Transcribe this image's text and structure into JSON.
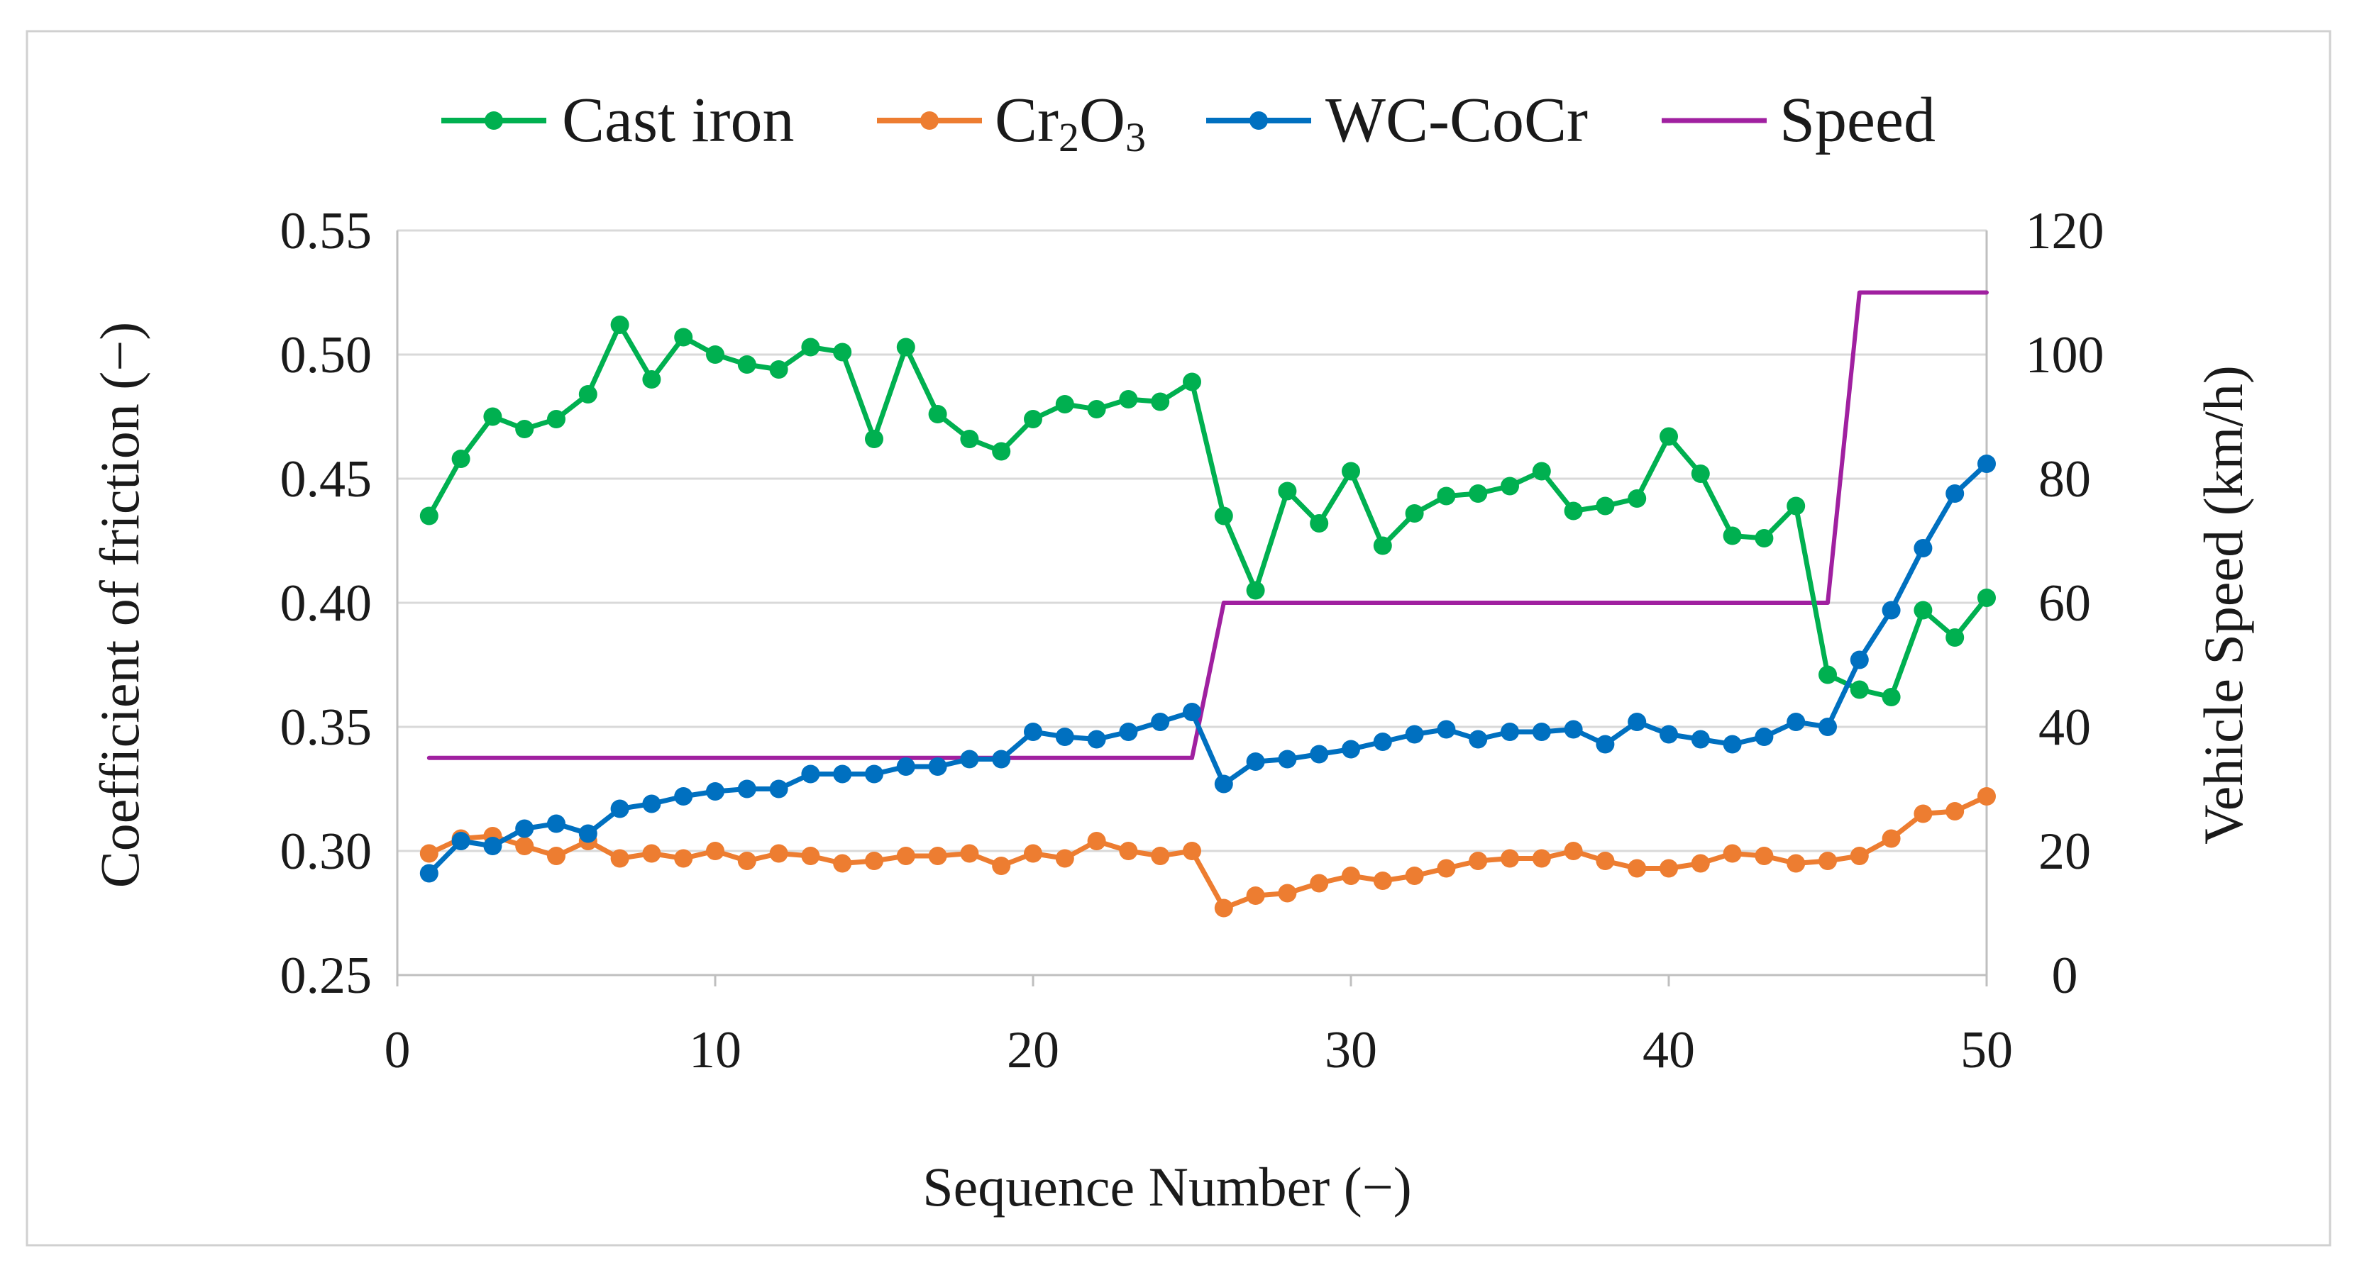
{
  "chart_data": {
    "type": "line",
    "xlabel": "Sequence Number (−)",
    "ylabel": "Coefficient of friction (−)",
    "y2label": "Vehicle Speed (km/h)",
    "xlim": [
      0,
      50
    ],
    "ylim": [
      0.25,
      0.55
    ],
    "y2lim": [
      0,
      120
    ],
    "xticks": [
      "0",
      "10",
      "20",
      "30",
      "40",
      "50"
    ],
    "xtick_values": [
      0,
      10,
      20,
      30,
      40,
      50
    ],
    "yticks": [
      "0.25",
      "0.30",
      "0.35",
      "0.40",
      "0.45",
      "0.50",
      "0.55"
    ],
    "ytick_values": [
      0.25,
      0.3,
      0.35,
      0.4,
      0.45,
      0.5,
      0.55
    ],
    "y2ticks": [
      "0",
      "20",
      "40",
      "60",
      "80",
      "100",
      "120"
    ],
    "y2tick_values": [
      0,
      20,
      40,
      60,
      80,
      100,
      120
    ],
    "grid": "horizontal",
    "legend_position": "top",
    "x": [
      1,
      2,
      3,
      4,
      5,
      6,
      7,
      8,
      9,
      10,
      11,
      12,
      13,
      14,
      15,
      16,
      17,
      18,
      19,
      20,
      21,
      22,
      23,
      24,
      25,
      26,
      27,
      28,
      29,
      30,
      31,
      32,
      33,
      34,
      35,
      36,
      37,
      38,
      39,
      40,
      41,
      42,
      43,
      44,
      45,
      46,
      47,
      48,
      49,
      50
    ],
    "series": [
      {
        "name": "Cast iron",
        "axis": "left",
        "color": "#00b050",
        "markers": true,
        "values": [
          0.435,
          0.458,
          0.475,
          0.47,
          0.474,
          0.484,
          0.512,
          0.49,
          0.507,
          0.5,
          0.496,
          0.494,
          0.503,
          0.501,
          0.466,
          0.503,
          0.476,
          0.466,
          0.461,
          0.474,
          0.48,
          0.478,
          0.482,
          0.481,
          0.489,
          0.435,
          0.405,
          0.445,
          0.432,
          0.453,
          0.423,
          0.436,
          0.443,
          0.444,
          0.447,
          0.453,
          0.437,
          0.439,
          0.442,
          0.467,
          0.452,
          0.427,
          0.426,
          0.439,
          0.371,
          0.365,
          0.362,
          0.397,
          0.386,
          0.402
        ]
      },
      {
        "name": "Cr2O3",
        "legend_main": "Cr",
        "legend_sub1": "2",
        "legend_mid": "O",
        "legend_sub2": "3",
        "axis": "left",
        "color": "#ed7d31",
        "markers": true,
        "values": [
          0.299,
          0.305,
          0.306,
          0.302,
          0.298,
          0.304,
          0.297,
          0.299,
          0.297,
          0.3,
          0.296,
          0.299,
          0.298,
          0.295,
          0.296,
          0.298,
          0.298,
          0.299,
          0.294,
          0.299,
          0.297,
          0.304,
          0.3,
          0.298,
          0.3,
          0.277,
          0.282,
          0.283,
          0.287,
          0.29,
          0.288,
          0.29,
          0.293,
          0.296,
          0.297,
          0.297,
          0.3,
          0.296,
          0.293,
          0.293,
          0.295,
          0.299,
          0.298,
          0.295,
          0.296,
          0.298,
          0.305,
          0.315,
          0.316,
          0.322
        ]
      },
      {
        "name": "WC-CoCr",
        "axis": "left",
        "color": "#0070c0",
        "markers": true,
        "values": [
          0.291,
          0.304,
          0.302,
          0.309,
          0.311,
          0.307,
          0.317,
          0.319,
          0.322,
          0.324,
          0.325,
          0.325,
          0.331,
          0.331,
          0.331,
          0.334,
          0.334,
          0.337,
          0.337,
          0.348,
          0.346,
          0.345,
          0.348,
          0.352,
          0.356,
          0.327,
          0.336,
          0.337,
          0.339,
          0.341,
          0.344,
          0.347,
          0.349,
          0.345,
          0.348,
          0.348,
          0.349,
          0.343,
          0.352,
          0.347,
          0.345,
          0.343,
          0.346,
          0.352,
          0.35,
          0.377,
          0.397,
          0.422,
          0.444,
          0.456
        ]
      },
      {
        "name": "Speed",
        "axis": "right",
        "color": "#a020a0",
        "markers": false,
        "values": [
          35,
          35,
          35,
          35,
          35,
          35,
          35,
          35,
          35,
          35,
          35,
          35,
          35,
          35,
          35,
          35,
          35,
          35,
          35,
          35,
          35,
          35,
          35,
          35,
          35,
          60,
          60,
          60,
          60,
          60,
          60,
          60,
          60,
          60,
          60,
          60,
          60,
          60,
          60,
          60,
          60,
          60,
          60,
          60,
          60,
          110,
          110,
          110,
          110,
          110
        ]
      }
    ]
  }
}
